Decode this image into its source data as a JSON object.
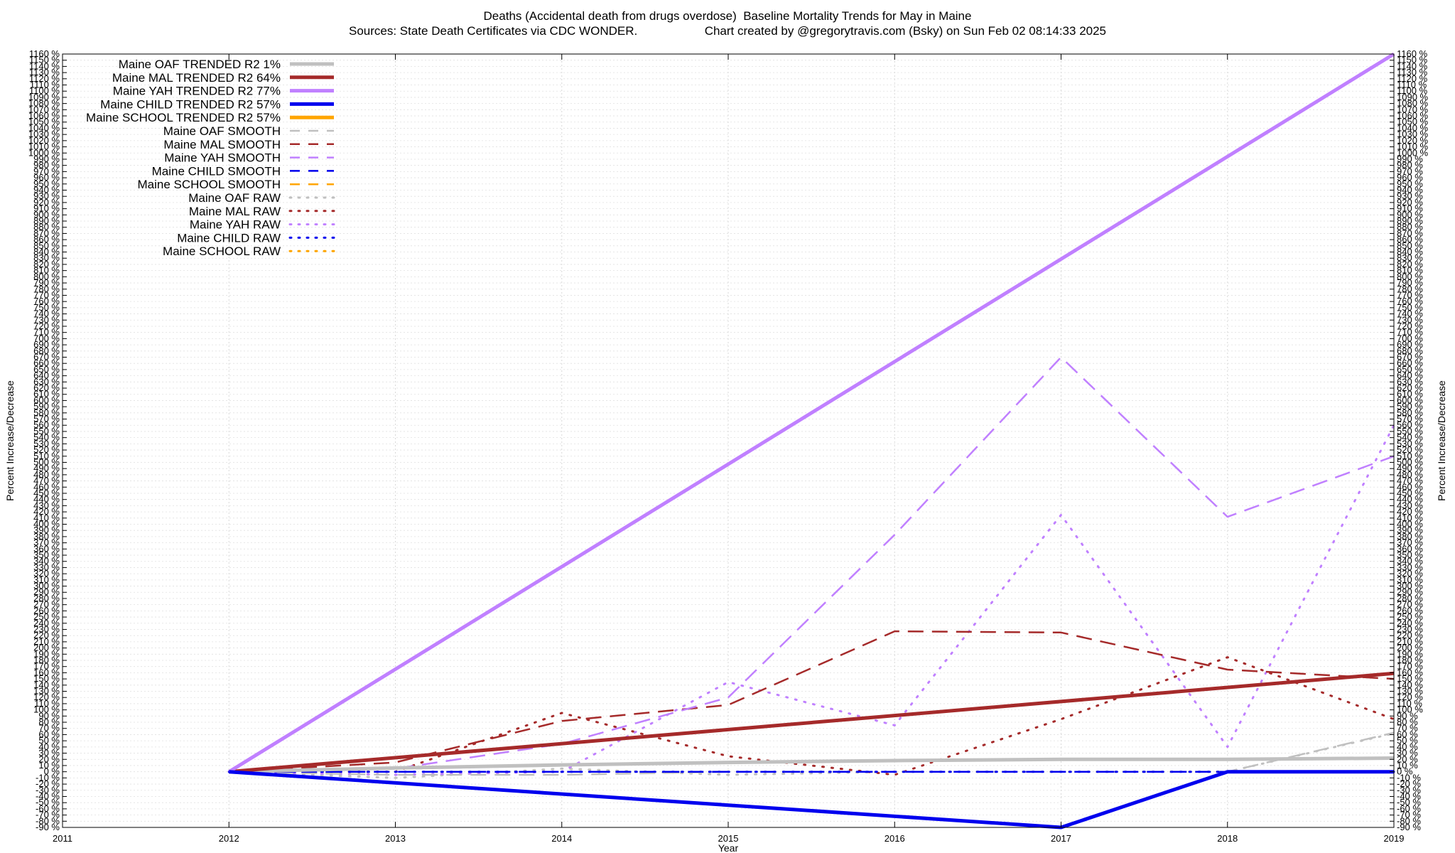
{
  "header": {
    "title": "Deaths (Accidental death from drugs overdose)  Baseline Mortality Trends for May in Maine",
    "subtitle_left": "Sources: State Death Certificates via CDC WONDER.",
    "subtitle_right": "Chart created by @gregorytravis.com (Bsky) on Sun Feb 02 08:14:33 2025"
  },
  "chart_data": {
    "type": "line",
    "title": "Deaths (Accidental death from drugs overdose)  Baseline Mortality Trends for May in Maine",
    "xlabel": "Year",
    "ylabel": "Percent Increase/Decrease",
    "ylabel_right": "Percent Increase/Decrease",
    "xlim": [
      2011,
      2019
    ],
    "ylim": [
      -90,
      1160
    ],
    "x_ticks": [
      2011,
      2012,
      2013,
      2014,
      2015,
      2016,
      2017,
      2018,
      2019
    ],
    "y_tick_step": 10,
    "y_tick_suffix": " %",
    "grid": true,
    "legend_position": "top-left",
    "series": [
      {
        "name": "Maine OAF TRENDED R2",
        "r2": "1%",
        "style": "trend",
        "color": "#c0c0c0",
        "x": [
          2012,
          2013,
          2014,
          2015,
          2016,
          2017,
          2018,
          2019
        ],
        "y": [
          0,
          6,
          11,
          15,
          18,
          20,
          20,
          22
        ]
      },
      {
        "name": "Maine MAL TRENDED R2",
        "r2": "64%",
        "style": "trend",
        "color": "#a52a2a",
        "x": [
          2012,
          2019
        ],
        "y": [
          0,
          159
        ]
      },
      {
        "name": "Maine YAH TRENDED R2",
        "r2": "77%",
        "style": "trend",
        "color": "#c080ff",
        "x": [
          2012,
          2019
        ],
        "y": [
          0,
          1160
        ]
      },
      {
        "name": "Maine CHILD TRENDED R2",
        "r2": "57%",
        "style": "trend",
        "color": "#0000ee",
        "x": [
          2012,
          2017,
          2018,
          2019
        ],
        "y": [
          0,
          -90,
          0,
          0
        ]
      },
      {
        "name": "Maine SCHOOL TRENDED R2",
        "r2": "57%",
        "style": "trend",
        "color": "#ffa500",
        "x": [],
        "y": []
      },
      {
        "name": "Maine OAF SMOOTH",
        "style": "smooth",
        "color": "#c0c0c0",
        "x": [
          2012,
          2013,
          2014,
          2015,
          2016,
          2017,
          2018,
          2019
        ],
        "y": [
          0,
          -5,
          -5,
          0,
          0,
          0,
          0,
          63
        ]
      },
      {
        "name": "Maine MAL SMOOTH",
        "style": "smooth",
        "color": "#a52a2a",
        "x": [
          2012,
          2013,
          2014,
          2015,
          2016,
          2017,
          2018,
          2019
        ],
        "y": [
          0,
          15,
          82,
          108,
          227,
          225,
          165,
          150
        ]
      },
      {
        "name": "Maine YAH SMOOTH",
        "style": "smooth",
        "color": "#c080ff",
        "x": [
          2012,
          2013,
          2014,
          2015,
          2016,
          2017,
          2018,
          2019
        ],
        "y": [
          0,
          5,
          45,
          120,
          383,
          670,
          412,
          510
        ]
      },
      {
        "name": "Maine CHILD SMOOTH",
        "style": "smooth",
        "color": "#0000ee",
        "x": [
          2012,
          2013,
          2014,
          2015,
          2016,
          2017,
          2018,
          2019
        ],
        "y": [
          0,
          0,
          0,
          0,
          0,
          0,
          0,
          0
        ]
      },
      {
        "name": "Maine SCHOOL SMOOTH",
        "style": "smooth",
        "color": "#ffa500",
        "x": [],
        "y": []
      },
      {
        "name": "Maine OAF RAW",
        "style": "raw",
        "color": "#c0c0c0",
        "x": [
          2012,
          2013,
          2014,
          2015,
          2016,
          2017,
          2018,
          2019
        ],
        "y": [
          0,
          -10,
          5,
          -5,
          0,
          0,
          0,
          62
        ]
      },
      {
        "name": "Maine MAL RAW",
        "style": "raw",
        "color": "#a52a2a",
        "x": [
          2012,
          2013,
          2014,
          2015,
          2016,
          2017,
          2018,
          2019
        ],
        "y": [
          0,
          0,
          95,
          25,
          -5,
          85,
          185,
          85
        ]
      },
      {
        "name": "Maine YAH RAW",
        "style": "raw",
        "color": "#c080ff",
        "x": [
          2012,
          2013,
          2014,
          2015,
          2016,
          2017,
          2018,
          2019
        ],
        "y": [
          0,
          -5,
          0,
          145,
          75,
          415,
          40,
          560
        ]
      },
      {
        "name": "Maine CHILD RAW",
        "style": "raw",
        "color": "#0000ee",
        "x": [
          2012,
          2013,
          2014,
          2015,
          2016,
          2017,
          2018,
          2019
        ],
        "y": [
          0,
          0,
          0,
          0,
          0,
          0,
          0,
          0
        ]
      },
      {
        "name": "Maine SCHOOL RAW",
        "style": "raw",
        "color": "#ffa500",
        "x": [],
        "y": []
      }
    ]
  }
}
